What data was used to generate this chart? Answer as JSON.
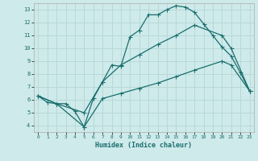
{
  "xlabel": "Humidex (Indice chaleur)",
  "bg_color": "#ceeaea",
  "grid_color": "#b8d8d8",
  "line_color": "#1a6e6e",
  "xlim": [
    -0.5,
    23.5
  ],
  "ylim": [
    3.5,
    13.5
  ],
  "xticks": [
    0,
    1,
    2,
    3,
    4,
    5,
    6,
    7,
    8,
    9,
    10,
    11,
    12,
    13,
    14,
    15,
    16,
    17,
    18,
    19,
    20,
    21,
    22,
    23
  ],
  "yticks": [
    4,
    5,
    6,
    7,
    8,
    9,
    10,
    11,
    12,
    13
  ],
  "curve1_x": [
    0,
    1,
    2,
    3,
    4,
    5,
    6,
    7,
    8,
    9,
    10,
    11,
    12,
    13,
    14,
    15,
    16,
    17,
    18,
    19,
    20,
    21,
    22,
    23
  ],
  "curve1_y": [
    6.3,
    5.8,
    5.7,
    5.7,
    5.1,
    3.9,
    6.1,
    7.4,
    8.7,
    8.6,
    10.9,
    11.4,
    12.6,
    12.6,
    13.0,
    13.3,
    13.2,
    12.8,
    11.9,
    11.0,
    10.1,
    9.4,
    8.1,
    6.7
  ],
  "curve2_x": [
    0,
    2,
    5,
    7,
    9,
    11,
    13,
    15,
    17,
    20,
    21,
    23
  ],
  "curve2_y": [
    6.3,
    5.7,
    5.0,
    7.4,
    8.7,
    9.5,
    10.3,
    11.0,
    11.8,
    11.0,
    10.0,
    6.7
  ],
  "curve3_x": [
    0,
    2,
    5,
    7,
    9,
    11,
    13,
    15,
    17,
    20,
    21,
    23
  ],
  "curve3_y": [
    6.3,
    5.7,
    3.9,
    6.1,
    6.5,
    6.9,
    7.3,
    7.8,
    8.3,
    9.0,
    8.7,
    6.7
  ]
}
